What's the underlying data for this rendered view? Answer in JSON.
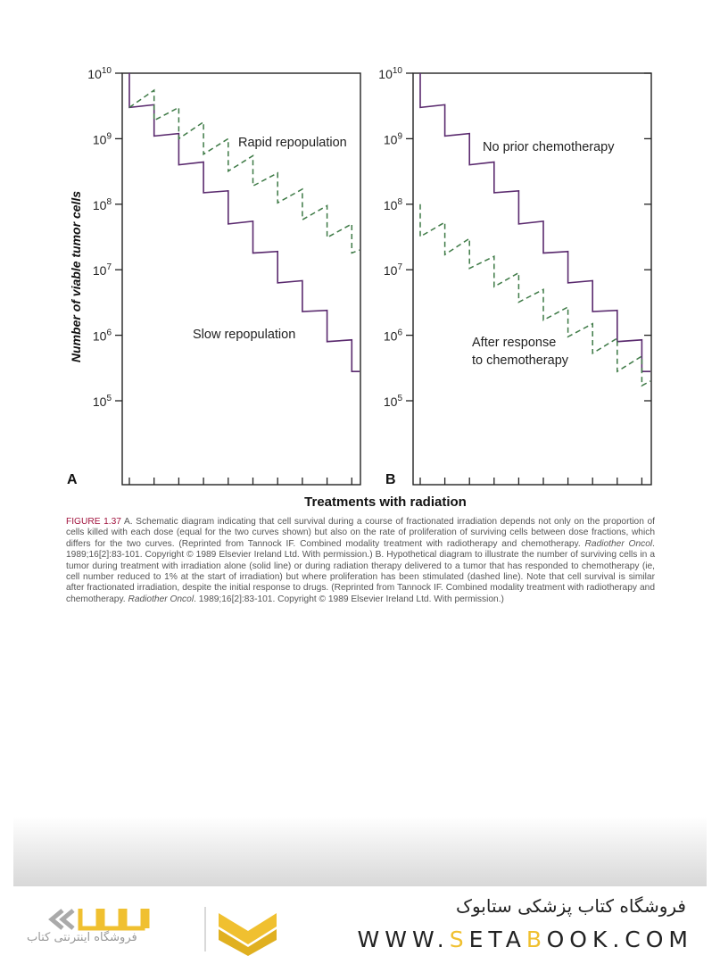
{
  "chart_data": [
    {
      "type": "line",
      "panel_label": "A",
      "yscale": "log",
      "ylim": [
        10000,
        10000000000
      ],
      "y_ticks": [
        {
          "base": "10",
          "exp": "10"
        },
        {
          "base": "10",
          "exp": "9"
        },
        {
          "base": "10",
          "exp": "8"
        },
        {
          "base": "10",
          "exp": "7"
        },
        {
          "base": "10",
          "exp": "6"
        },
        {
          "base": "10",
          "exp": "5"
        }
      ],
      "ylabel": "Number of viable tumor cells",
      "x_fractions": 10,
      "series": [
        {
          "name": "Slow repopulation",
          "style": "solid",
          "color": "#5a2a6e",
          "pre_dose": [
            10000000000.0,
            3300000000.0,
            1200000000.0,
            440000000.0,
            160000000.0,
            55000000.0,
            19000000.0,
            6800000.0,
            2400000.0,
            850000.0
          ],
          "post_dose": [
            3000000000.0,
            1100000000.0,
            400000000.0,
            150000000.0,
            50000000.0,
            18000000.0,
            6300000.0,
            2300000.0,
            800000.0,
            280000.0
          ],
          "end": 280000.0
        },
        {
          "name": "Rapid repopulation",
          "style": "dashed",
          "color": "#3e7a46",
          "pre_dose": [
            null,
            5500000000.0,
            3000000000.0,
            1800000000.0,
            1000000000.0,
            550000000.0,
            300000000.0,
            170000000.0,
            95000000.0,
            50000000.0
          ],
          "post_dose": [
            3000000000.0,
            1900000000.0,
            1000000000.0,
            580000000.0,
            320000000.0,
            190000000.0,
            105000000.0,
            58000000.0,
            31000000.0,
            18000000.0
          ],
          "end": 20000000.0
        }
      ]
    },
    {
      "type": "line",
      "panel_label": "B",
      "yscale": "log",
      "ylim": [
        10000,
        10000000000
      ],
      "y_ticks": [
        {
          "base": "10",
          "exp": "10"
        },
        {
          "base": "10",
          "exp": "9"
        },
        {
          "base": "10",
          "exp": "8"
        },
        {
          "base": "10",
          "exp": "7"
        },
        {
          "base": "10",
          "exp": "6"
        },
        {
          "base": "10",
          "exp": "5"
        }
      ],
      "x_fractions": 10,
      "series": [
        {
          "name": "No prior chemotherapy",
          "style": "solid",
          "color": "#5a2a6e",
          "pre_dose": [
            10000000000.0,
            3300000000.0,
            1200000000.0,
            440000000.0,
            160000000.0,
            55000000.0,
            19000000.0,
            6800000.0,
            2400000.0,
            850000.0
          ],
          "post_dose": [
            3000000000.0,
            1100000000.0,
            400000000.0,
            150000000.0,
            50000000.0,
            18000000.0,
            6300000.0,
            2300000.0,
            800000.0,
            280000.0
          ],
          "end": 280000.0
        },
        {
          "name": "After response to chemotherapy",
          "name_line1": "After response",
          "name_line2": "to chemotherapy",
          "style": "dashed",
          "color": "#3e7a46",
          "pre_dose": [
            100000000.0,
            53000000.0,
            30000000.0,
            16000000.0,
            9000000.0,
            5000000.0,
            2700000.0,
            1500000.0,
            900000.0,
            480000.0
          ],
          "post_dose": [
            32000000.0,
            17000000.0,
            10500000.0,
            5500000.0,
            3200000.0,
            1700000.0,
            950000.0,
            530000.0,
            280000.0,
            170000.0
          ],
          "end": 200000.0
        }
      ]
    }
  ],
  "xlabel": "Treatments with radiation",
  "caption": {
    "figure_number": "FIGURE 1.37",
    "part1": " A. Schematic diagram indicating that cell survival during a course of fractionated irradiation depends not only on the proportion of cells killed with each dose (equal for the two curves shown) but also on the rate of proliferation of surviving cells between dose fractions, which differs for the two curves. (Reprinted from Tannock IF. Combined modality treatment with radiotherapy and chemotherapy. ",
    "journal1": "Radiother Oncol",
    "part2": ". 1989;16[2]:83-101. Copyright © 1989 Elsevier Ireland Ltd. With permission.) B. Hypothetical diagram to illustrate the number of surviving cells in a tumor during treatment with irradiation alone (solid line) or during radiation therapy delivered to a tumor that has responded to chemotherapy (ie, cell number reduced to 1% at the start of irradiation) but where proliferation has been stimulated (dashed line). Note that cell survival is similar after fractionated irradiation, despite the initial response to drugs. (Reprinted from Tannock IF. Combined modality treatment with radiotherapy and chemotherapy. ",
    "journal2": "Radiother Oncol",
    "part3": ". 1989;16[2]:83-101. Copyright © 1989 Elsevier Ireland Ltd. With permission.)"
  },
  "footer": {
    "store_title": "فروشگاه کتاب پزشکی ستابوک",
    "url_pre": "WWW.",
    "url_s": "S",
    "url_mid": "ETA",
    "url_b": "B",
    "url_post": "OOK.COM",
    "logo_tagline": "فروشگاه اینترنتی کتاب",
    "brand_yellow": "#f0c030"
  }
}
